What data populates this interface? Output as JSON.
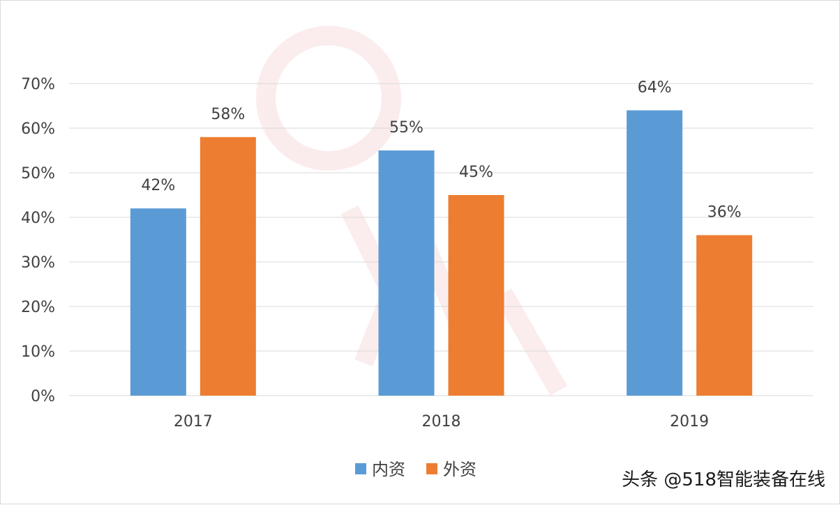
{
  "chart_data": {
    "type": "bar",
    "categories": [
      "2017",
      "2018",
      "2019"
    ],
    "series": [
      {
        "name": "内资",
        "values": [
          42,
          55,
          64
        ],
        "color": "#5b9bd5"
      },
      {
        "name": "外资",
        "values": [
          58,
          45,
          36
        ],
        "color": "#ed7d31"
      }
    ],
    "data_labels": [
      [
        "42%",
        "55%",
        "64%"
      ],
      [
        "58%",
        "45%",
        "36%"
      ]
    ],
    "yticks": [
      0,
      10,
      20,
      30,
      40,
      50,
      60,
      70
    ],
    "ytick_labels": [
      "0%",
      "10%",
      "20%",
      "30%",
      "40%",
      "50%",
      "60%",
      "70%"
    ],
    "ylim": [
      0,
      70
    ],
    "grid": true,
    "legend_position": "bottom",
    "title": "",
    "xlabel": "",
    "ylabel": ""
  },
  "watermark": {
    "credit": "头条 @518智能装备在线"
  },
  "colors": {
    "gridline": "#d9d9d9",
    "axis_text": "#404040"
  }
}
